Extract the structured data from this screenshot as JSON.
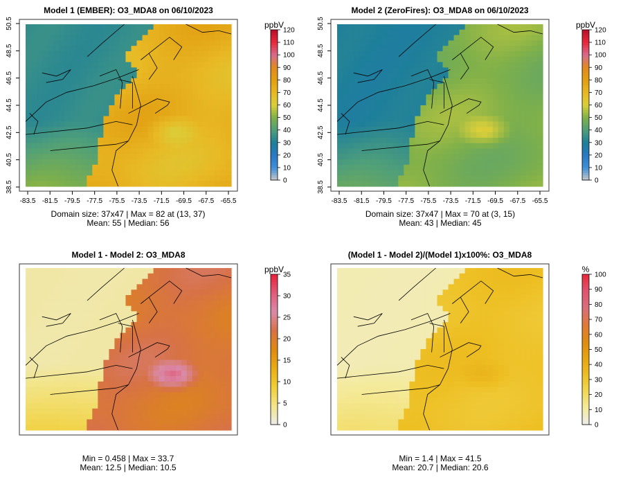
{
  "colors": {
    "land_colors": {
      "absolute": [
        "#c8c8c8",
        "#3f8fd8",
        "#2a79c2",
        "#1e7f9a",
        "#4f9f7a",
        "#7fb04a",
        "#d9cf3a",
        "#e8b824",
        "#e19f12",
        "#e08a20",
        "#d56c8e",
        "#e8293a",
        "#b8102a"
      ],
      "difference": [
        "#ececec",
        "#f2e58a",
        "#f1cf39",
        "#e9ad16",
        "#df8a10",
        "#d77246",
        "#d98aa8",
        "#e05d7a",
        "#e8213a"
      ],
      "percent": [
        "#ececec",
        "#f4eb9e",
        "#f2d855",
        "#edbf23",
        "#e6a512",
        "#df8b12",
        "#e07a3a",
        "#d86f7b",
        "#e0546f",
        "#e8293a"
      ]
    }
  },
  "chart_data": [
    {
      "id": "model1",
      "type": "heatmap",
      "title": "Model 1 (EMBER): O3_MDA8 on 06/10/2023",
      "legend_title": "ppbV",
      "colorbar_ticks": [
        0,
        10,
        20,
        30,
        40,
        50,
        60,
        70,
        80,
        90,
        100,
        110,
        120
      ],
      "vmin": 0,
      "vmax": 120,
      "x_ticks": [
        "-83.5",
        "-81.5",
        "-79.5",
        "-77.5",
        "-75.5",
        "-73.5",
        "-71.5",
        "-69.5",
        "-67.5",
        "-65.5"
      ],
      "y_ticks": [
        "38.5",
        "40.5",
        "42.5",
        "44.5",
        "46.5",
        "48.5",
        "50.5"
      ],
      "stats_line1": "Domain size: 37x47 | Max = 82 at (13, 37)",
      "stats_line2": "Mean: 55 |  Median: 56",
      "field": {
        "inland": 34,
        "ocean": 72,
        "south": 50,
        "warm_blob": 60
      }
    },
    {
      "id": "model2",
      "type": "heatmap",
      "title": "Model 2 (ZeroFires): O3_MDA8 on 06/10/2023",
      "legend_title": "ppbV",
      "colorbar_ticks": [
        0,
        10,
        20,
        30,
        40,
        50,
        60,
        70,
        80,
        90,
        100,
        110,
        120
      ],
      "vmin": 0,
      "vmax": 120,
      "x_ticks": [
        "-83.5",
        "-81.5",
        "-79.5",
        "-77.5",
        "-75.5",
        "-73.5",
        "-71.5",
        "-69.5",
        "-67.5",
        "-65.5"
      ],
      "y_ticks": [
        "38.5",
        "40.5",
        "42.5",
        "44.5",
        "46.5",
        "48.5",
        "50.5"
      ],
      "stats_line1": "Domain size: 37x47 | Max = 70 at (3, 15)",
      "stats_line2": "Mean: 43 |  Median: 45",
      "field": {
        "inland": 30,
        "ocean": 50,
        "south": 44,
        "warm_blob": 62
      }
    },
    {
      "id": "difference",
      "type": "heatmap",
      "title": "Model 1 - Model 2: O3_MDA8",
      "legend_title": "ppbV",
      "colorbar_ticks": [
        0,
        5,
        10,
        15,
        20,
        25,
        30,
        35
      ],
      "vmin": 0,
      "vmax": 35,
      "x_ticks": [],
      "y_ticks": [],
      "stats_line1": "Min = 0.458 | Max = 33.7",
      "stats_line2": "Mean: 12.5 |  Median: 10.5",
      "field": {
        "inland": 3,
        "ocean": 21,
        "south": 8,
        "warm_blob": 30
      }
    },
    {
      "id": "percent",
      "type": "heatmap",
      "title": "(Model 1 - Model 2)/(Model 1)x100%: O3_MDA8",
      "legend_title": "%",
      "colorbar_ticks": [
        0,
        10,
        20,
        30,
        40,
        50,
        60,
        70,
        80,
        90,
        100
      ],
      "vmin": 0,
      "vmax": 100,
      "x_ticks": [],
      "y_ticks": [],
      "stats_line1": "Min = 1.4 | Max = 41.5",
      "stats_line2": "Mean: 20.7 |  Median: 20.6",
      "field": {
        "inland": 8,
        "ocean": 32,
        "south": 18,
        "warm_blob": 38
      }
    }
  ]
}
